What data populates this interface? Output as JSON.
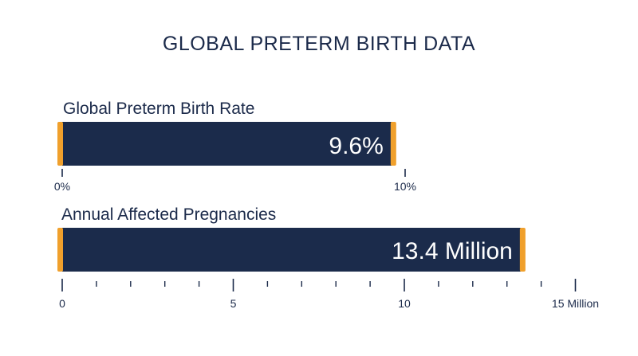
{
  "title": "GLOBAL PRETERM BIRTH DATA",
  "colors": {
    "bar": "#1b2b4b",
    "accent": "#f0a02c",
    "text": "#1b2a4a",
    "value_text": "#ffffff"
  },
  "chart_data": [
    {
      "type": "bar",
      "orientation": "horizontal",
      "title": "Global Preterm Birth Rate",
      "value": 9.6,
      "value_label": "9.6%",
      "xlim": [
        0,
        10
      ],
      "ticks": [
        {
          "value": 0,
          "label": "0%"
        },
        {
          "value": 10,
          "label": "10%"
        }
      ],
      "minor_ticks": []
    },
    {
      "type": "bar",
      "orientation": "horizontal",
      "title": "Annual Affected Pregnancies",
      "value": 13.4,
      "value_label": "13.4 Million",
      "xlim": [
        0,
        15
      ],
      "ticks": [
        {
          "value": 0,
          "label": "0"
        },
        {
          "value": 5,
          "label": "5"
        },
        {
          "value": 10,
          "label": "10"
        },
        {
          "value": 15,
          "label": "15 Million"
        }
      ],
      "minor_ticks": [
        1,
        2,
        3,
        4,
        6,
        7,
        8,
        9,
        11,
        12,
        13,
        14
      ]
    }
  ]
}
